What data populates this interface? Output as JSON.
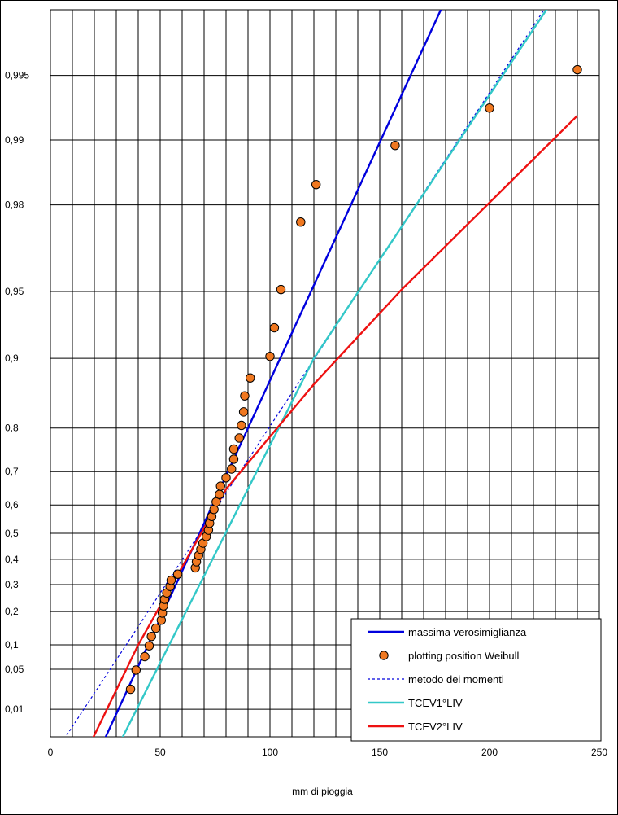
{
  "chart_data": {
    "type": "scatter",
    "title": "",
    "xlabel": "mm di pioggia",
    "ylabel": "",
    "xlim": [
      0,
      250
    ],
    "x_ticks": [
      0,
      50,
      100,
      150,
      200,
      250
    ],
    "y_scale": "gumbel probability",
    "ylim": [
      0.001,
      0.999
    ],
    "y_ticks": [
      {
        "p": 0.01,
        "label": "0,01"
      },
      {
        "p": 0.05,
        "label": "0,05"
      },
      {
        "p": 0.1,
        "label": "0,1"
      },
      {
        "p": 0.2,
        "label": "0,2"
      },
      {
        "p": 0.3,
        "label": "0,3"
      },
      {
        "p": 0.4,
        "label": "0,4"
      },
      {
        "p": 0.5,
        "label": "0,5"
      },
      {
        "p": 0.6,
        "label": "0,6"
      },
      {
        "p": 0.7,
        "label": "0,7"
      },
      {
        "p": 0.8,
        "label": "0,8"
      },
      {
        "p": 0.9,
        "label": "0,9"
      },
      {
        "p": 0.95,
        "label": "0,95"
      },
      {
        "p": 0.98,
        "label": "0,98"
      },
      {
        "p": 0.99,
        "label": "0,99"
      },
      {
        "p": 0.995,
        "label": "0,995"
      }
    ],
    "grid": true,
    "legend_position": "bottom-right",
    "series": [
      {
        "name": "massima verosimiglianza",
        "kind": "line",
        "color": "#0000dd",
        "dash": false,
        "points": [
          [
            17,
            8e-05
          ],
          [
            209,
            0.9995
          ]
        ]
      },
      {
        "name": "plotting position Weibull",
        "kind": "points",
        "color": "#f07820",
        "points": [
          [
            36.5,
            0.0244
          ],
          [
            39,
            0.0488
          ],
          [
            43,
            0.0732
          ],
          [
            45,
            0.0976
          ],
          [
            46,
            0.122
          ],
          [
            48,
            0.146
          ],
          [
            50.5,
            0.171
          ],
          [
            51,
            0.195
          ],
          [
            51.5,
            0.22
          ],
          [
            52,
            0.244
          ],
          [
            53,
            0.268
          ],
          [
            54.5,
            0.293
          ],
          [
            55,
            0.317
          ],
          [
            58,
            0.341
          ],
          [
            66,
            0.366
          ],
          [
            66.5,
            0.39
          ],
          [
            67.5,
            0.415
          ],
          [
            68.5,
            0.439
          ],
          [
            69.5,
            0.463
          ],
          [
            71,
            0.488
          ],
          [
            72,
            0.512
          ],
          [
            72.5,
            0.537
          ],
          [
            73.5,
            0.561
          ],
          [
            74.5,
            0.585
          ],
          [
            75.5,
            0.61
          ],
          [
            77,
            0.634
          ],
          [
            77.5,
            0.659
          ],
          [
            80,
            0.683
          ],
          [
            82.5,
            0.707
          ],
          [
            83.5,
            0.732
          ],
          [
            83.5,
            0.756
          ],
          [
            86,
            0.78
          ],
          [
            87,
            0.805
          ],
          [
            88,
            0.829
          ],
          [
            88.5,
            0.854
          ],
          [
            91,
            0.878
          ],
          [
            100,
            0.902
          ],
          [
            102,
            0.927
          ],
          [
            105,
            0.951
          ],
          [
            114,
            0.976
          ],
          [
            121,
            0.9839
          ],
          [
            157,
            0.9894
          ],
          [
            200,
            0.9929
          ],
          [
            240,
            0.9953
          ]
        ]
      },
      {
        "name": "metodo dei momenti",
        "kind": "line",
        "color": "#0000dd",
        "dash": true,
        "points": [
          [
            5,
            0.0013
          ],
          [
            250,
            0.999
          ]
        ]
      },
      {
        "name": "TCEV1°LIV",
        "kind": "line",
        "color": "#33c8c8",
        "dash": false,
        "points": [
          [
            24,
            8e-05
          ],
          [
            120,
            0.9
          ],
          [
            240,
            0.9985
          ]
        ]
      },
      {
        "name": "TCEV2°LIV",
        "kind": "line",
        "color": "#ee1111",
        "dash": false,
        "points": [
          [
            11,
            8e-05
          ],
          [
            40,
            0.1
          ],
          [
            80,
            0.65
          ],
          [
            120,
            0.87
          ],
          [
            160,
            0.951
          ],
          [
            240,
            0.9923
          ]
        ]
      }
    ]
  }
}
